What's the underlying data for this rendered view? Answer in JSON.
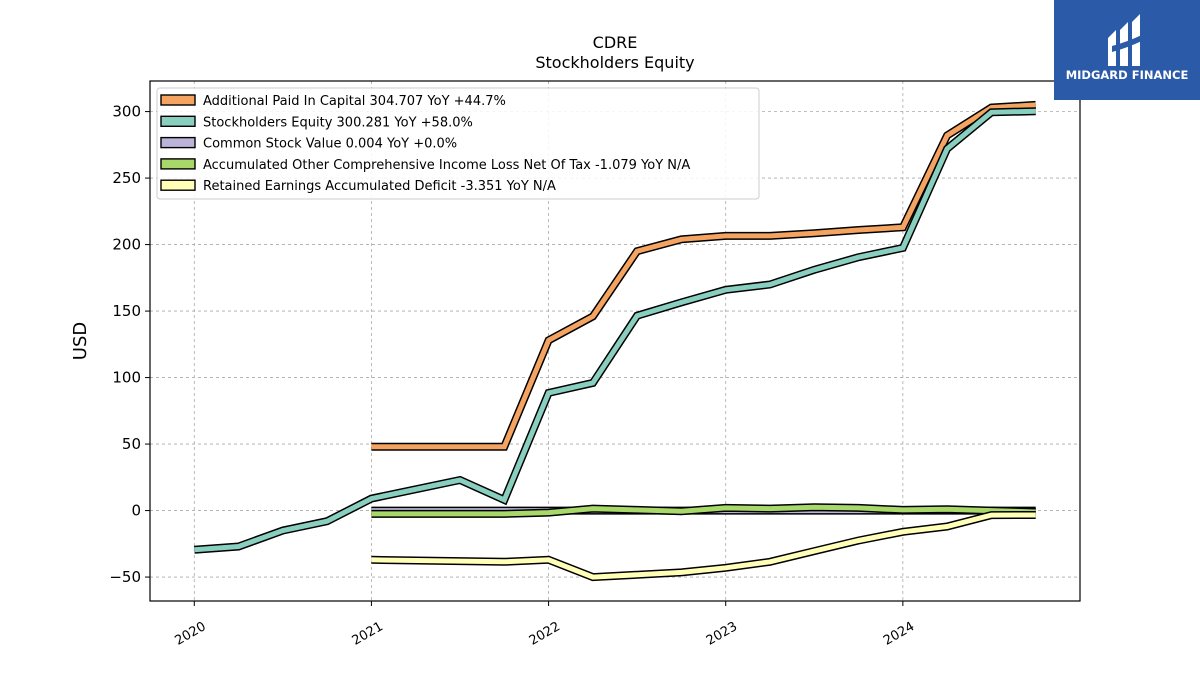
{
  "brand": {
    "name": "MIDGARD FINANCE",
    "color": "#2b5aa8"
  },
  "chart_data": {
    "type": "line",
    "title": "CDRE",
    "subtitle": "Stockholders  Equity",
    "ylabel": "USD",
    "xlabel": "",
    "ylim": [
      -68,
      323
    ],
    "xlim": [
      2019.75,
      2025.0
    ],
    "yticks": [
      -50,
      0,
      50,
      100,
      150,
      200,
      250,
      300
    ],
    "ytick_labels": [
      "−50",
      "0",
      "50",
      "100",
      "150",
      "200",
      "250",
      "300"
    ],
    "xticks": [
      2020,
      2021,
      2022,
      2023,
      2024
    ],
    "xtick_labels": [
      "2020",
      "2021",
      "2022",
      "2023",
      "2024"
    ],
    "grid": true,
    "legend_position": "top-left",
    "series": [
      {
        "name": "Additional Paid In Capital",
        "legend_label": "Additional Paid In Capital  304.707 YoY +44.7%",
        "color": "#f4a460",
        "x": [
          2021.0,
          2021.25,
          2021.5,
          2021.75,
          2022.0,
          2022.25,
          2022.5,
          2022.75,
          2023.0,
          2023.25,
          2023.5,
          2023.75,
          2024.0,
          2024.25,
          2024.5,
          2024.75
        ],
        "y": [
          48,
          48,
          48,
          48,
          128,
          146,
          195,
          204,
          206.5,
          206.5,
          208.5,
          211,
          213,
          282,
          303,
          305
        ]
      },
      {
        "name": "Stockholders Equity",
        "legend_label": "Stockholders Equity  300.281 YoY +58.0%",
        "color": "#88cfc0",
        "x": [
          2020.0,
          2020.25,
          2020.5,
          2020.75,
          2021.0,
          2021.5,
          2021.75,
          2022.0,
          2022.25,
          2022.5,
          2022.75,
          2023.0,
          2023.25,
          2023.5,
          2023.75,
          2024.0,
          2024.25,
          2024.5,
          2024.75
        ],
        "y": [
          -29.5,
          -27,
          -15,
          -8,
          9,
          23,
          8,
          88.5,
          96,
          146.5,
          156.5,
          166,
          170,
          181,
          190.5,
          197.5,
          272,
          299.5,
          300.3
        ]
      },
      {
        "name": "Common Stock Value",
        "legend_label": "Common Stock Value  0.004 YoY +0.0%",
        "color": "#bbb4d8",
        "x": [
          2021.0,
          2021.5,
          2022.0,
          2022.5,
          2023.0,
          2023.5,
          2024.0,
          2024.5,
          2024.75
        ],
        "y": [
          0.004,
          0.004,
          0.004,
          0.004,
          0.004,
          0.004,
          0.004,
          0.004,
          0.004
        ]
      },
      {
        "name": "Accumulated Other Comprehensive Income Loss Net Of Tax",
        "legend_label": "Accumulated Other Comprehensive Income Loss Net Of Tax  -1.079 YoY N/A",
        "color": "#a8d86a",
        "x": [
          2021.0,
          2021.5,
          2021.75,
          2022.0,
          2022.25,
          2022.5,
          2022.75,
          2023.0,
          2023.25,
          2023.5,
          2023.75,
          2024.0,
          2024.25,
          2024.5,
          2024.75
        ],
        "y": [
          -2.5,
          -2.5,
          -2.5,
          -1.5,
          1.5,
          0.5,
          -0.5,
          2,
          1.5,
          2.5,
          2,
          0.5,
          1,
          0,
          -1.1
        ]
      },
      {
        "name": "Retained Earnings Accumulated Deficit",
        "legend_label": "Retained Earnings Accumulated Deficit  -3.351 YoY N/A",
        "color": "#ffffb8",
        "x": [
          2021.0,
          2021.75,
          2022.0,
          2022.25,
          2022.75,
          2023.0,
          2023.25,
          2023.5,
          2023.75,
          2024.0,
          2024.25,
          2024.5,
          2024.75
        ],
        "y": [
          -37,
          -38.5,
          -37,
          -50,
          -46.5,
          -43,
          -38.5,
          -30.5,
          -22.5,
          -16,
          -12,
          -3.4,
          -3.35
        ]
      }
    ]
  }
}
